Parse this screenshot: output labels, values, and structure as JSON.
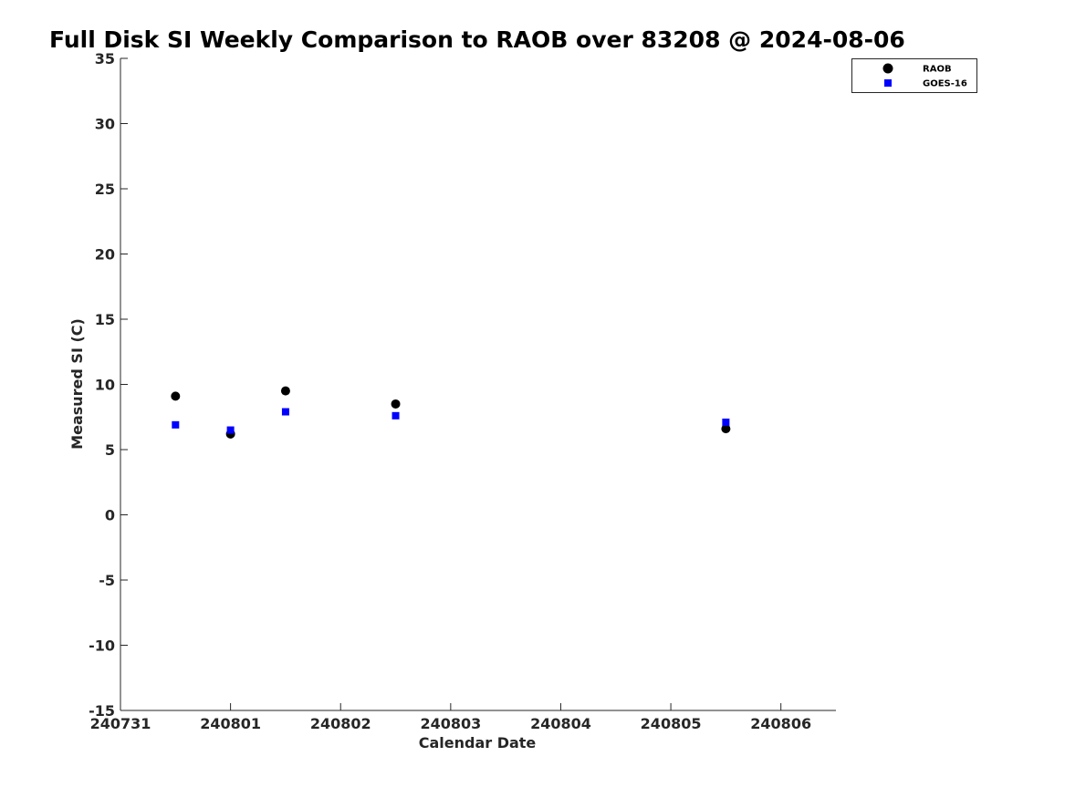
{
  "chart_data": {
    "type": "scatter",
    "title": "Full Disk SI Weekly Comparison to RAOB over 83208 @ 2024-08-06",
    "xlabel": "Calendar Date",
    "ylabel": "Measured SI (C)",
    "x_ticks": [
      "240731",
      "240801",
      "240802",
      "240803",
      "240804",
      "240805",
      "240806"
    ],
    "xlim": [
      "2024-07-31T00:00",
      "2024-08-06T12:00"
    ],
    "ylim": [
      -15,
      35
    ],
    "y_ticks": [
      -15,
      -10,
      -5,
      0,
      5,
      10,
      15,
      20,
      25,
      30,
      35
    ],
    "grid": false,
    "legend_position": "top-right",
    "series": [
      {
        "name": "RAOB",
        "marker": "circle",
        "color": "#000000",
        "points": [
          {
            "x": "2024-07-31T12:00",
            "y": 9.1
          },
          {
            "x": "2024-08-01T00:00",
            "y": 6.2
          },
          {
            "x": "2024-08-01T12:00",
            "y": 9.5
          },
          {
            "x": "2024-08-02T12:00",
            "y": 8.5
          },
          {
            "x": "2024-08-05T12:00",
            "y": 6.6
          }
        ]
      },
      {
        "name": "GOES-16",
        "marker": "square",
        "color": "#0000ff",
        "points": [
          {
            "x": "2024-07-31T12:00",
            "y": 6.9
          },
          {
            "x": "2024-08-01T00:00",
            "y": 6.5
          },
          {
            "x": "2024-08-01T12:00",
            "y": 7.9
          },
          {
            "x": "2024-08-02T12:00",
            "y": 7.6
          },
          {
            "x": "2024-08-05T12:00",
            "y": 7.1
          }
        ]
      }
    ]
  }
}
